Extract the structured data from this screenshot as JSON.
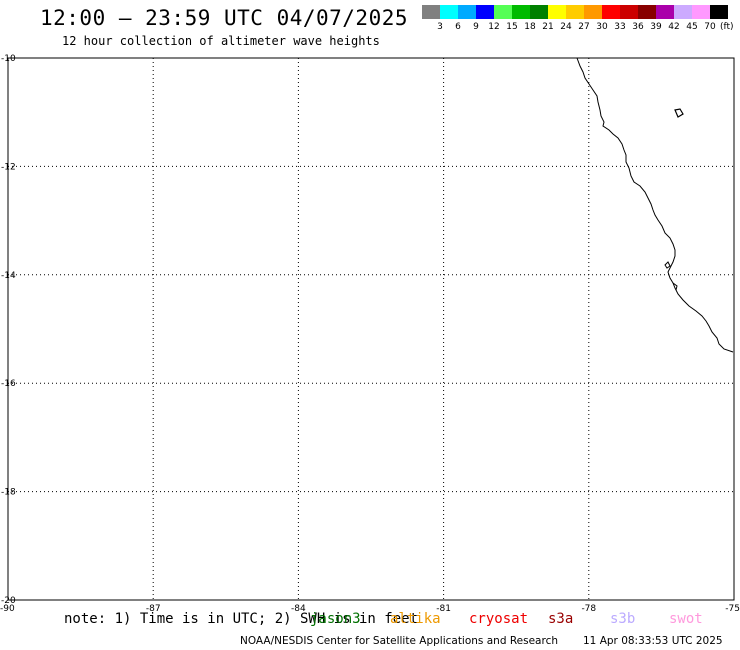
{
  "header": {
    "title": "12:00 – 23:59 UTC 04/07/2025",
    "subtitle": "12 hour collection of altimeter wave heights"
  },
  "legend": {
    "unit": "(ft)",
    "labels": [
      "3",
      "6",
      "9",
      "12",
      "15",
      "18",
      "21",
      "24",
      "27",
      "30",
      "33",
      "36",
      "39",
      "42",
      "45",
      "70"
    ],
    "colors": [
      "#808080",
      "#00ffff",
      "#00aaff",
      "#0000ff",
      "#55ff55",
      "#00bb00",
      "#008000",
      "#ffff00",
      "#ffcc00",
      "#ff9900",
      "#ff0000",
      "#cc0000",
      "#880000",
      "#aa00aa",
      "#ccaaff",
      "#ff99ff",
      "#000000"
    ]
  },
  "map": {
    "lat_labels": [
      "-10",
      "-12",
      "-14",
      "-16",
      "-18",
      "-20"
    ],
    "lon_labels": [
      "-90",
      "-87",
      "-84",
      "-81",
      "-78",
      "-75"
    ],
    "lat_range": [
      -20,
      -10
    ],
    "lon_range": [
      -90,
      -75
    ],
    "grid_style": "dotted",
    "coastline_color": "#000000"
  },
  "footer": {
    "note": "note: 1) Time is in UTC; 2) SWH is in feet",
    "satellites": [
      {
        "name": "jason3",
        "color": "#007000"
      },
      {
        "name": "altika",
        "color": "#ee9900"
      },
      {
        "name": "cryosat",
        "color": "#ee0000"
      },
      {
        "name": "s3a",
        "color": "#990000"
      },
      {
        "name": "s3b",
        "color": "#bbaaff"
      },
      {
        "name": "swot",
        "color": "#ff99dd"
      }
    ],
    "credit": "NOAA/NESDIS Center for Satellite Applications and Research",
    "timestamp": "11 Apr 08:33:53 UTC 2025"
  }
}
